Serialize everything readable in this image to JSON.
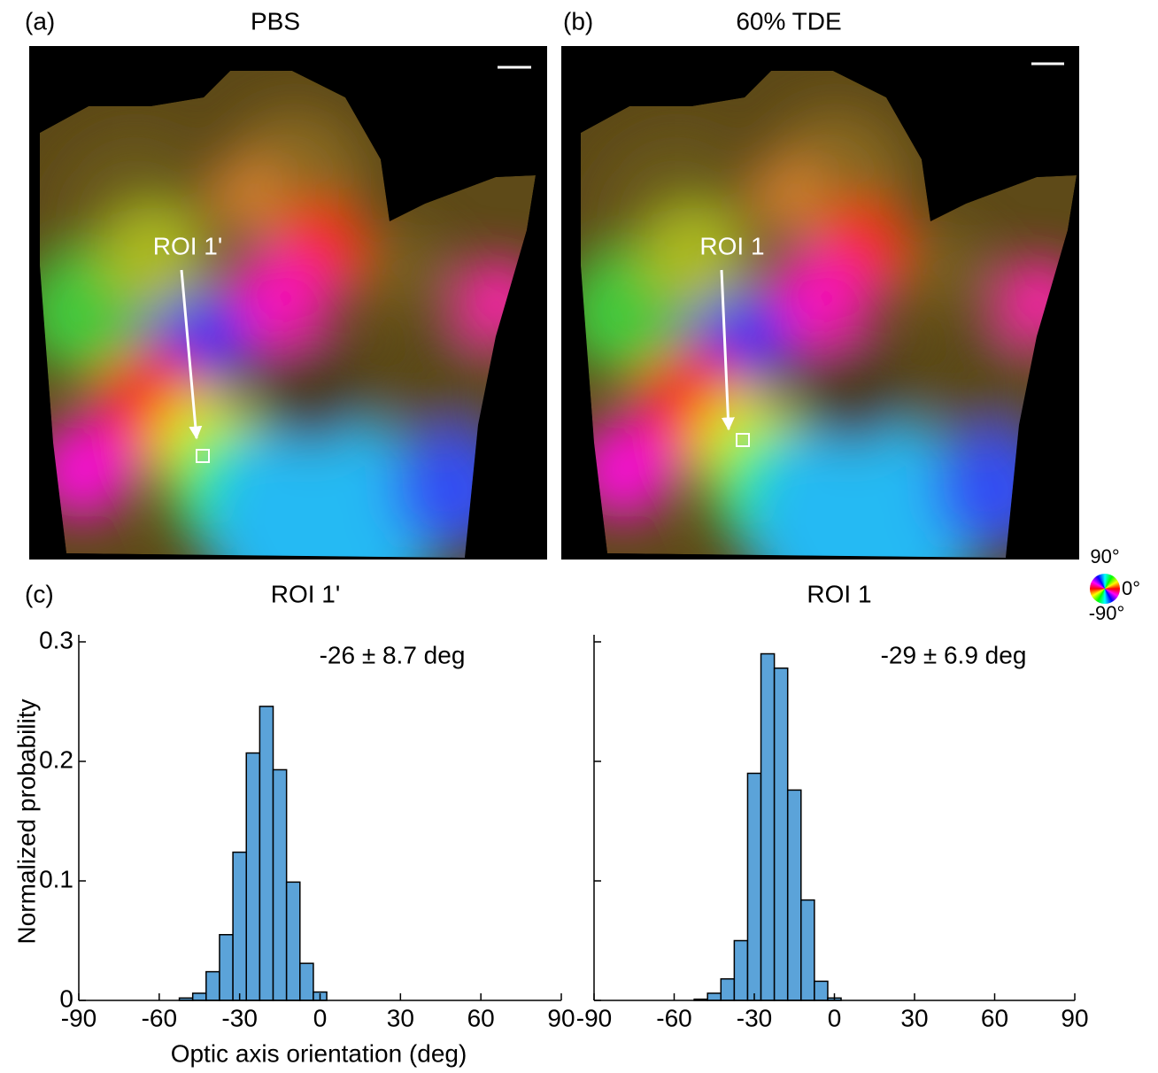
{
  "panels": [
    {
      "label": "(a)",
      "title": "PBS",
      "roi_label": "ROI 1'"
    },
    {
      "label": "(b)",
      "title": "60% TDE",
      "roi_label": "ROI 1"
    }
  ],
  "panel_c_label": "(c)",
  "color_wheel": {
    "top": "90°",
    "right": "0°",
    "bottom": "-90°"
  },
  "chart_data": [
    {
      "type": "histogram",
      "title": "ROI 1'",
      "annotation": "-26 ± 8.7 deg",
      "xlabel": "Optic axis orientation (deg)",
      "ylabel": "Normalized probability",
      "bins": [
        -52.5,
        -47.5,
        -42.5,
        -37.5,
        -32.5,
        -27.5,
        -22.5,
        -17.5,
        -12.5,
        -7.5,
        -2.5,
        2.5
      ],
      "values": [
        0.002,
        0.006,
        0.024,
        0.055,
        0.124,
        0.207,
        0.246,
        0.193,
        0.099,
        0.031,
        0.007
      ],
      "color": "#5ba3d9",
      "edgecolor": "#000000",
      "xlim": [
        -90,
        90
      ],
      "ylim": [
        0,
        0.3
      ],
      "xticks": [
        -90,
        -60,
        -30,
        0,
        30,
        60,
        90
      ],
      "yticks": [
        0,
        0.1,
        0.2,
        0.3
      ],
      "ytick_labels": true
    },
    {
      "type": "histogram",
      "title": "ROI 1",
      "annotation": "-29 ± 6.9 deg",
      "bins": [
        -52.5,
        -47.5,
        -42.5,
        -37.5,
        -32.5,
        -27.5,
        -22.5,
        -17.5,
        -12.5,
        -7.5,
        -2.5,
        2.5
      ],
      "values": [
        0.001,
        0.006,
        0.018,
        0.05,
        0.19,
        0.29,
        0.278,
        0.176,
        0.084,
        0.016,
        0.002
      ],
      "color": "#5ba3d9",
      "edgecolor": "#000000",
      "xlim": [
        -90,
        90
      ],
      "ylim": [
        0,
        0.3
      ],
      "xticks": [
        -90,
        -60,
        -30,
        0,
        30,
        60,
        90
      ],
      "yticks": [
        0,
        0.1,
        0.2,
        0.3
      ],
      "ytick_labels": false
    }
  ]
}
